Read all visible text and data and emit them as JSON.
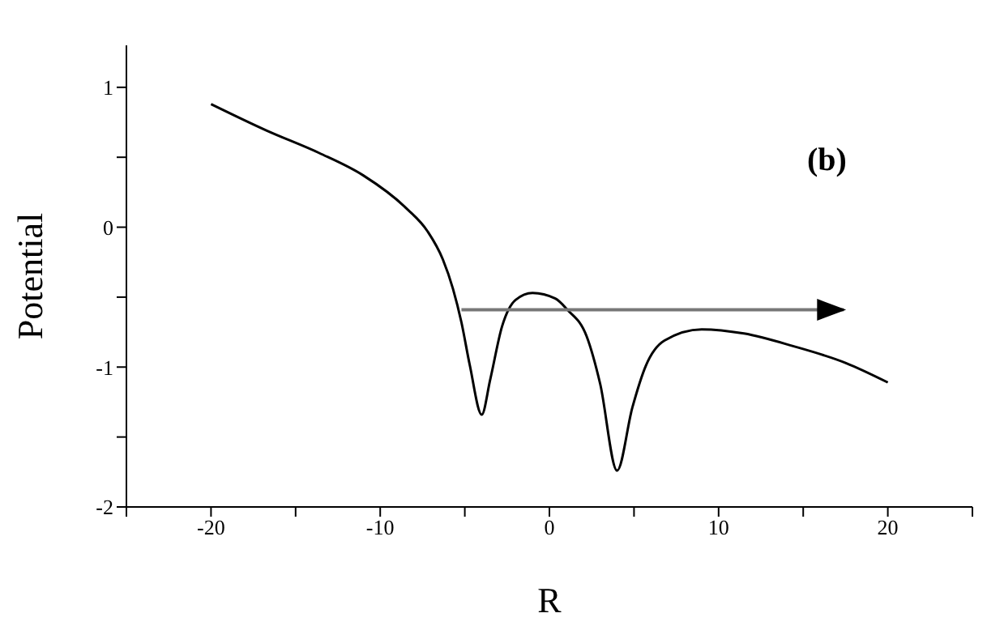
{
  "chart_data": {
    "type": "line",
    "xlabel": "R",
    "ylabel": "Potential",
    "annotations": [
      "(b)"
    ],
    "xlim": [
      -25,
      25
    ],
    "ylim": [
      -2,
      1.3
    ],
    "xticks": [
      {
        "value": -25,
        "label": null
      },
      -20,
      {
        "value": -15,
        "label": null
      },
      -10,
      {
        "value": -5,
        "label": null
      },
      0,
      {
        "value": 5,
        "label": null
      },
      10,
      {
        "value": 15,
        "label": null
      },
      20,
      {
        "value": 25,
        "label": null
      }
    ],
    "yticks": [
      -2,
      {
        "value": -1.5,
        "label": null
      },
      -1,
      {
        "value": -0.5,
        "label": null
      },
      0,
      {
        "value": 0.5,
        "label": null
      },
      1
    ],
    "marker": "none",
    "series": [
      {
        "color": "#000000",
        "x": [
          -20,
          -16.7,
          -13.6,
          -11,
          -8.5,
          -7.2,
          -6.3,
          -5.7,
          -5.2,
          -4.7,
          -4,
          -3.5,
          -2.8,
          -2,
          -1,
          0.35,
          1.06,
          2.2,
          3,
          4,
          4.9,
          5.7,
          6.8,
          9,
          11.5,
          14.4,
          17.5,
          20
        ],
        "values": [
          0.88,
          0.69,
          0.53,
          0.37,
          0.14,
          -0.03,
          -0.23,
          -0.44,
          -0.68,
          -0.99,
          -1.34,
          -1.09,
          -0.71,
          -0.52,
          -0.47,
          -0.51,
          -0.59,
          -0.78,
          -1.12,
          -1.74,
          -1.29,
          -0.99,
          -0.81,
          -0.73,
          -0.76,
          -0.85,
          -0.97,
          -1.11
        ]
      },
      {
        "color": "#777777",
        "x": [
          -5.2,
          17.4
        ],
        "values": [
          -0.59,
          -0.59
        ]
      }
    ]
  }
}
